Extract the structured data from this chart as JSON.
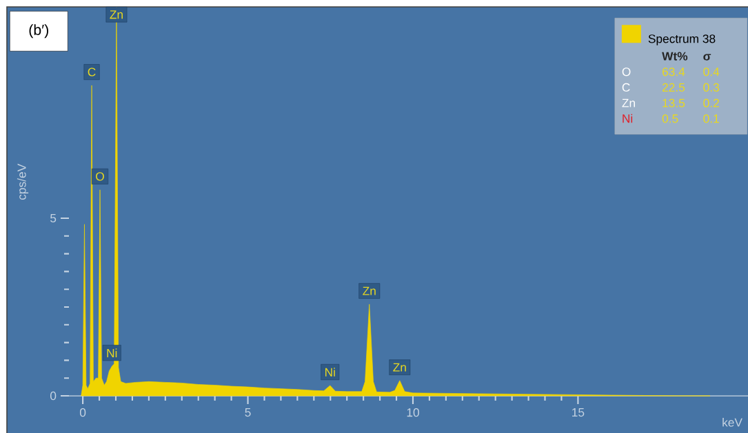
{
  "chart_data": {
    "type": "area",
    "title": "(b′)",
    "xlabel": "keV",
    "ylabel": "cps/eV",
    "xlim": [
      -0.42,
      20.15
    ],
    "ylim": [
      0,
      10.95
    ],
    "xticks": [
      0,
      5,
      10,
      15
    ],
    "yticks": [
      0,
      5
    ],
    "grid": false,
    "legend": "top right",
    "series": [
      {
        "name": "Spectrum 38",
        "color": "#f0d400",
        "x": [
          -0.05,
          0.0,
          0.05,
          0.1,
          0.15,
          0.22,
          0.27,
          0.32,
          0.4,
          0.47,
          0.52,
          0.57,
          0.65,
          0.72,
          0.8,
          0.88,
          0.95,
          1.02,
          1.08,
          1.15,
          1.3,
          1.6,
          2.0,
          2.5,
          3.0,
          3.5,
          4.0,
          4.5,
          5.0,
          5.5,
          6.0,
          6.5,
          7.0,
          7.3,
          7.49,
          7.65,
          8.0,
          8.45,
          8.55,
          8.68,
          8.8,
          8.9,
          9.3,
          9.45,
          9.6,
          9.75,
          10.0,
          11.0,
          12.0,
          13.0,
          14.0,
          15.0,
          16.0,
          17.0,
          18.0,
          19.0
        ],
        "values": [
          0,
          0.3,
          4.83,
          0.3,
          0.2,
          0.35,
          8.74,
          0.4,
          0.5,
          0.5,
          5.8,
          0.5,
          0.3,
          0.4,
          0.7,
          0.83,
          0.9,
          10.95,
          0.8,
          0.4,
          0.35,
          0.38,
          0.4,
          0.38,
          0.36,
          0.32,
          0.3,
          0.27,
          0.25,
          0.22,
          0.2,
          0.18,
          0.15,
          0.14,
          0.29,
          0.13,
          0.12,
          0.12,
          0.4,
          2.58,
          0.4,
          0.11,
          0.1,
          0.15,
          0.43,
          0.12,
          0.08,
          0.07,
          0.06,
          0.05,
          0.04,
          0.03,
          0.02,
          0.01,
          0,
          0
        ]
      }
    ],
    "annotations": [
      {
        "text": "C",
        "x": 0.27,
        "y": 8.74
      },
      {
        "text": "Zn",
        "x": 1.02,
        "y": 10.95
      },
      {
        "text": "O",
        "x": 0.52,
        "y": 5.8
      },
      {
        "text": "Ni",
        "x": 0.88,
        "y": 0.83
      },
      {
        "text": "Ni",
        "x": 7.49,
        "y": 0.29
      },
      {
        "text": "Zn",
        "x": 8.68,
        "y": 2.58
      },
      {
        "text": "Zn",
        "x": 9.6,
        "y": 0.43
      },
      "Wt%",
      "σ",
      "O",
      "63.4",
      "0.4",
      "C",
      "22.5",
      "0.3",
      "Zn",
      "13.5",
      "0.2",
      "Ni",
      "0.5",
      "0.1"
    ]
  }
}
